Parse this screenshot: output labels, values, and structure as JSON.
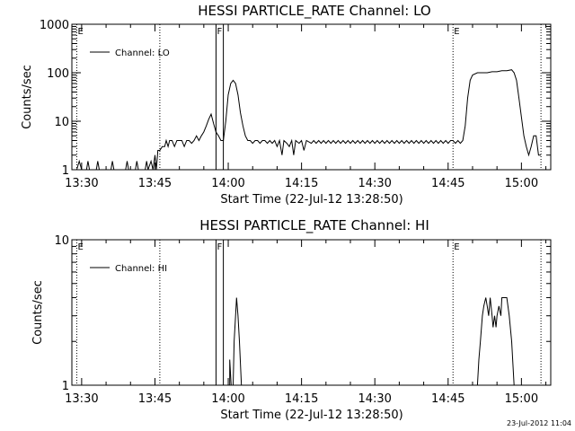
{
  "footer": {
    "timestamp": "23-Jul-2012 11:04"
  },
  "chart_data": [
    {
      "type": "line",
      "title": "HESSI PARTICLE_RATE Channel: LO",
      "xlabel": "Start Time (22-Jul-12 13:28:50)",
      "ylabel": "Counts/sec",
      "yscale": "log",
      "xlim": [
        "13:28:50",
        "15:06"
      ],
      "ylim": [
        1,
        1000
      ],
      "x_ticks": [
        "13:30",
        "13:45",
        "14:00",
        "14:15",
        "14:30",
        "14:45",
        "15:00"
      ],
      "y_ticks": [
        "1",
        "10",
        "100",
        "1000"
      ],
      "legend": {
        "position": "top-left",
        "entries": [
          "Channel: LO"
        ]
      },
      "flags": [
        {
          "label": "E",
          "time": "13:29",
          "style": "dotted"
        },
        {
          "label": "",
          "time": "13:46",
          "style": "dotted"
        },
        {
          "label": "F",
          "time": "13:57.5",
          "style": "solid"
        },
        {
          "label": "",
          "time": "13:59",
          "style": "solid"
        },
        {
          "label": "E",
          "time": "14:46",
          "style": "dotted"
        },
        {
          "label": "",
          "time": "15:04",
          "style": "dotted"
        }
      ],
      "series": [
        {
          "name": "Channel: LO",
          "points": [
            [
              "13:29",
              1
            ],
            [
              "13:29.5",
              1.5
            ],
            [
              "13:30",
              1
            ],
            [
              "13:31",
              1
            ],
            [
              "13:31.3",
              1.5
            ],
            [
              "13:31.6",
              1
            ],
            [
              "13:33",
              1
            ],
            [
              "13:33.3",
              1.5
            ],
            [
              "13:33.6",
              1
            ],
            [
              "13:36",
              1
            ],
            [
              "13:36.3",
              1.5
            ],
            [
              "13:36.6",
              1
            ],
            [
              "13:39",
              1
            ],
            [
              "13:39.3",
              1.5
            ],
            [
              "13:39.6",
              1
            ],
            [
              "13:41",
              1
            ],
            [
              "13:41.3",
              1.5
            ],
            [
              "13:41.6",
              1
            ],
            [
              "13:43",
              1
            ],
            [
              "13:43.3",
              1.5
            ],
            [
              "13:43.6",
              1
            ],
            [
              "13:44.2",
              1.5
            ],
            [
              "13:44.6",
              1
            ],
            [
              "13:45",
              2
            ],
            [
              "13:45.3",
              1
            ],
            [
              "13:45.6",
              2.5
            ],
            [
              "13:46",
              2.5
            ],
            [
              "13:46.5",
              3
            ],
            [
              "13:47",
              3
            ],
            [
              "13:47.3",
              4
            ],
            [
              "13:47.7",
              3
            ],
            [
              "13:48",
              4
            ],
            [
              "13:48.5",
              4
            ],
            [
              "13:49",
              3
            ],
            [
              "13:49.5",
              4
            ],
            [
              "13:50",
              4
            ],
            [
              "13:50.5",
              4
            ],
            [
              "13:51",
              3
            ],
            [
              "13:51.5",
              4
            ],
            [
              "13:52",
              4
            ],
            [
              "13:52.5",
              3.5
            ],
            [
              "13:53",
              4
            ],
            [
              "13:53.5",
              5
            ],
            [
              "13:54",
              4
            ],
            [
              "13:54.5",
              5
            ],
            [
              "13:55",
              6
            ],
            [
              "13:55.5",
              8
            ],
            [
              "13:56",
              11
            ],
            [
              "13:56.5",
              14
            ],
            [
              "13:57",
              9
            ],
            [
              "13:57.5",
              6
            ],
            [
              "13:58",
              5
            ],
            [
              "13:58.5",
              4
            ],
            [
              "13:59",
              4
            ],
            [
              "13:59.5",
              10
            ],
            [
              "14:00",
              35
            ],
            [
              "14:00.5",
              60
            ],
            [
              "14:01",
              70
            ],
            [
              "14:01.5",
              60
            ],
            [
              "14:02",
              35
            ],
            [
              "14:02.5",
              15
            ],
            [
              "14:03",
              8
            ],
            [
              "14:03.5",
              5
            ],
            [
              "14:04",
              4
            ],
            [
              "14:04.5",
              4
            ],
            [
              "14:05",
              3.5
            ],
            [
              "14:05.5",
              4
            ],
            [
              "14:06",
              4
            ],
            [
              "14:06.5",
              3.5
            ],
            [
              "14:07",
              4
            ],
            [
              "14:07.5",
              4
            ],
            [
              "14:08",
              3.5
            ],
            [
              "14:08.5",
              4
            ],
            [
              "14:09",
              3.5
            ],
            [
              "14:09.5",
              4
            ],
            [
              "14:10",
              3
            ],
            [
              "14:10.5",
              4
            ],
            [
              "14:11",
              2
            ],
            [
              "14:11.4",
              4
            ],
            [
              "14:12",
              3.5
            ],
            [
              "14:12.5",
              3
            ],
            [
              "14:13",
              4
            ],
            [
              "14:13.4",
              2
            ],
            [
              "14:13.8",
              4
            ],
            [
              "14:14.5",
              3.5
            ],
            [
              "14:15",
              4
            ],
            [
              "14:15.5",
              2.5
            ],
            [
              "14:16",
              4
            ],
            [
              "14:17",
              3.5
            ],
            [
              "14:17.5",
              4
            ],
            [
              "14:18",
              3.5
            ],
            [
              "14:18.5",
              4
            ],
            [
              "14:19",
              3.5
            ],
            [
              "14:19.5",
              4
            ],
            [
              "14:20",
              3.5
            ],
            [
              "14:20.5",
              4
            ],
            [
              "14:21",
              3.5
            ],
            [
              "14:21.5",
              4
            ],
            [
              "14:22",
              3.5
            ],
            [
              "14:22.5",
              4
            ],
            [
              "14:23",
              3.5
            ],
            [
              "14:23.5",
              4
            ],
            [
              "14:24",
              3.5
            ],
            [
              "14:24.5",
              4
            ],
            [
              "14:25",
              3.5
            ],
            [
              "14:25.5",
              4
            ],
            [
              "14:26",
              3.5
            ],
            [
              "14:26.5",
              4
            ],
            [
              "14:27",
              3.5
            ],
            [
              "14:27.5",
              4
            ],
            [
              "14:28",
              3.5
            ],
            [
              "14:28.5",
              4
            ],
            [
              "14:29",
              3.5
            ],
            [
              "14:29.5",
              4
            ],
            [
              "14:30",
              3.5
            ],
            [
              "14:30.5",
              4
            ],
            [
              "14:31",
              3.5
            ],
            [
              "14:31.5",
              4
            ],
            [
              "14:32",
              3.5
            ],
            [
              "14:32.5",
              4
            ],
            [
              "14:33",
              3.5
            ],
            [
              "14:33.5",
              4
            ],
            [
              "14:34",
              3.5
            ],
            [
              "14:34.5",
              4
            ],
            [
              "14:35",
              3.5
            ],
            [
              "14:35.5",
              4
            ],
            [
              "14:36",
              3.5
            ],
            [
              "14:36.5",
              4
            ],
            [
              "14:37",
              3.5
            ],
            [
              "14:37.5",
              4
            ],
            [
              "14:38",
              3.5
            ],
            [
              "14:38.5",
              4
            ],
            [
              "14:39",
              3.5
            ],
            [
              "14:39.5",
              4
            ],
            [
              "14:40",
              3.5
            ],
            [
              "14:40.5",
              4
            ],
            [
              "14:41",
              3.5
            ],
            [
              "14:41.5",
              4
            ],
            [
              "14:42",
              3.5
            ],
            [
              "14:42.5",
              4
            ],
            [
              "14:43",
              3.5
            ],
            [
              "14:43.5",
              4
            ],
            [
              "14:44",
              3.5
            ],
            [
              "14:44.5",
              4
            ],
            [
              "14:45",
              3.5
            ],
            [
              "14:45.5",
              4
            ],
            [
              "14:46",
              4
            ],
            [
              "14:46.5",
              3.5
            ],
            [
              "14:47",
              4
            ],
            [
              "14:47.5",
              3.5
            ],
            [
              "14:48",
              4
            ],
            [
              "14:48.5",
              8
            ],
            [
              "14:49",
              30
            ],
            [
              "14:49.5",
              70
            ],
            [
              "14:50",
              90
            ],
            [
              "14:51",
              100
            ],
            [
              "14:52",
              100
            ],
            [
              "14:53",
              100
            ],
            [
              "14:54",
              105
            ],
            [
              "14:55",
              105
            ],
            [
              "14:56",
              110
            ],
            [
              "14:57",
              110
            ],
            [
              "14:58",
              115
            ],
            [
              "14:58.5",
              100
            ],
            [
              "14:59",
              70
            ],
            [
              "14:59.5",
              30
            ],
            [
              "15:00",
              12
            ],
            [
              "15:00.5",
              5
            ],
            [
              "15:01",
              3
            ],
            [
              "15:01.5",
              2
            ],
            [
              "15:02",
              3
            ],
            [
              "15:02.5",
              5
            ],
            [
              "15:03",
              5
            ],
            [
              "15:03.5",
              2
            ],
            [
              "15:04",
              2
            ]
          ]
        }
      ]
    },
    {
      "type": "line",
      "title": "HESSI PARTICLE_RATE Channel: HI",
      "xlabel": "Start Time (22-Jul-12 13:28:50)",
      "ylabel": "Counts/sec",
      "yscale": "log",
      "xlim": [
        "13:28:50",
        "15:06"
      ],
      "ylim": [
        1,
        10
      ],
      "x_ticks": [
        "13:30",
        "13:45",
        "14:00",
        "14:15",
        "14:30",
        "14:45",
        "15:00"
      ],
      "y_ticks": [
        "1",
        "10"
      ],
      "legend": {
        "position": "top-left",
        "entries": [
          "Channel: HI"
        ]
      },
      "flags": [
        {
          "label": "E",
          "time": "13:29",
          "style": "dotted"
        },
        {
          "label": "",
          "time": "13:46",
          "style": "dotted"
        },
        {
          "label": "F",
          "time": "13:57.5",
          "style": "solid"
        },
        {
          "label": "",
          "time": "13:59",
          "style": "solid"
        },
        {
          "label": "E",
          "time": "14:46",
          "style": "dotted"
        },
        {
          "label": "",
          "time": "15:04",
          "style": "dotted"
        }
      ],
      "series": [
        {
          "name": "Channel: HI",
          "segments": [
            [
              [
                "14:00.3",
                1
              ],
              [
                "14:00.3",
                1.5
              ],
              [
                "14:00.6",
                1
              ]
            ],
            [
              [
                "14:01",
                1
              ],
              [
                "14:01.2",
                2
              ],
              [
                "14:01.5",
                3
              ],
              [
                "14:01.7",
                4
              ],
              [
                "14:02",
                3
              ],
              [
                "14:02.3",
                2
              ],
              [
                "14:02.7",
                1
              ]
            ],
            [
              [
                "14:51",
                1
              ],
              [
                "14:51.3",
                1.5
              ],
              [
                "14:51.6",
                2
              ],
              [
                "14:52",
                3
              ],
              [
                "14:52.3",
                3.5
              ],
              [
                "14:52.7",
                4
              ],
              [
                "14:53",
                3.5
              ],
              [
                "14:53.3",
                3
              ],
              [
                "14:53.6",
                4
              ],
              [
                "14:54",
                3
              ],
              [
                "14:54.2",
                2.5
              ],
              [
                "14:54.5",
                3
              ],
              [
                "14:54.8",
                2.5
              ],
              [
                "14:55",
                3
              ],
              [
                "14:55.4",
                3.5
              ],
              [
                "14:55.8",
                3
              ],
              [
                "14:56",
                4
              ],
              [
                "14:57",
                4
              ],
              [
                "14:57.5",
                3
              ],
              [
                "14:58",
                2
              ],
              [
                "14:58.5",
                1
              ]
            ]
          ]
        }
      ]
    }
  ]
}
